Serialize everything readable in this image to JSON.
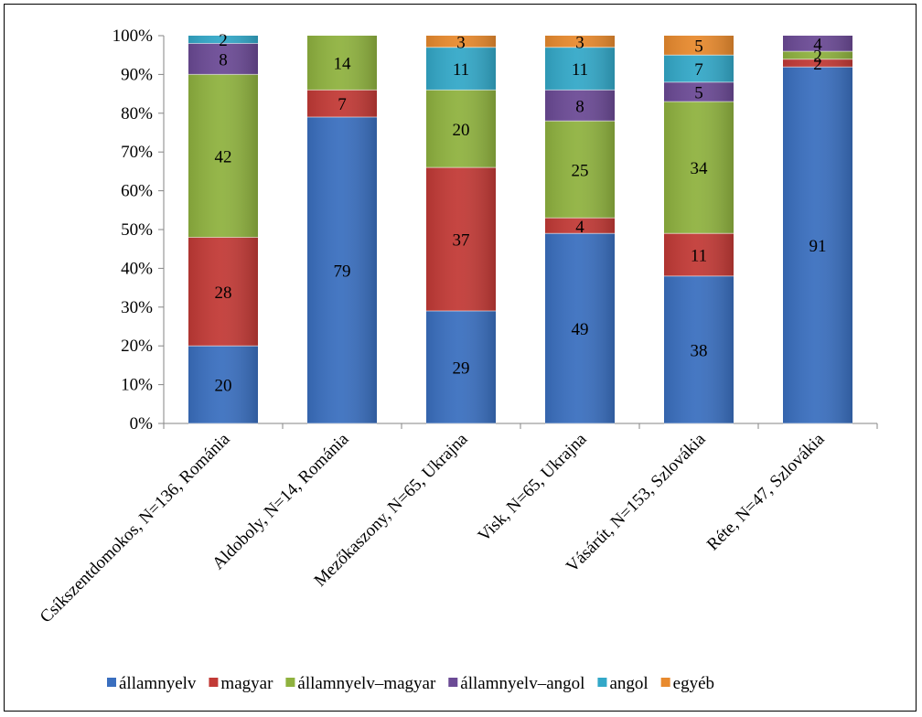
{
  "chart_data": {
    "type": "bar",
    "stacked": true,
    "percent_stacked": true,
    "categories": [
      "Csíkszentdomokos, N=136, Románia",
      "Aldoboly, N=14, Románia",
      "Mezőkaszony, N=65, Ukrajna",
      "Visk, N=65, Ukrajna",
      "Vásárút, N=153, Szlovákia",
      "Réte, N=47, Szlovákia"
    ],
    "series": [
      {
        "name": "államnyelv",
        "color": "#3a6fbf",
        "values": [
          20,
          79,
          29,
          49,
          38,
          91
        ]
      },
      {
        "name": "magyar",
        "color": "#c23a36",
        "values": [
          28,
          7,
          37,
          4,
          11,
          2
        ]
      },
      {
        "name": "államnyelv–magyar",
        "color": "#8fb23f",
        "values": [
          42,
          14,
          20,
          25,
          34,
          2
        ]
      },
      {
        "name": "államnyelv–angol",
        "color": "#6b4a95",
        "values": [
          8,
          0,
          0,
          8,
          5,
          4
        ]
      },
      {
        "name": "angol",
        "color": "#33a8c8",
        "values": [
          2,
          0,
          11,
          11,
          7,
          0
        ]
      },
      {
        "name": "egyéb",
        "color": "#e88a2e",
        "values": [
          0,
          0,
          3,
          3,
          5,
          0
        ]
      }
    ],
    "y_tick_labels": [
      "0%",
      "10%",
      "20%",
      "30%",
      "40%",
      "50%",
      "60%",
      "70%",
      "80%",
      "90%",
      "100%"
    ],
    "ylim": [
      0,
      100
    ],
    "xlabel": "",
    "ylabel": "",
    "title": "",
    "grid": false,
    "legend_position": "bottom"
  }
}
